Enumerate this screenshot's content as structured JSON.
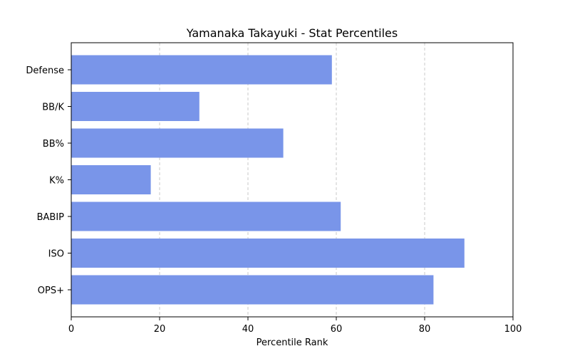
{
  "chart_data": {
    "type": "bar",
    "orientation": "horizontal",
    "title": "Yamanaka Takayuki - Stat Percentiles",
    "xlabel": "Percentile Rank",
    "ylabel": "",
    "categories": [
      "OPS+",
      "ISO",
      "BABIP",
      "K%",
      "BB%",
      "BB/K",
      "Defense"
    ],
    "values": [
      82,
      89,
      61,
      18,
      48,
      29,
      59
    ],
    "xlim": [
      0,
      100
    ],
    "xticks": [
      0,
      20,
      40,
      60,
      80,
      100
    ],
    "grid": "x-dashed",
    "bar_color": "#7995e9",
    "grid_color": "#c8c8c8"
  }
}
